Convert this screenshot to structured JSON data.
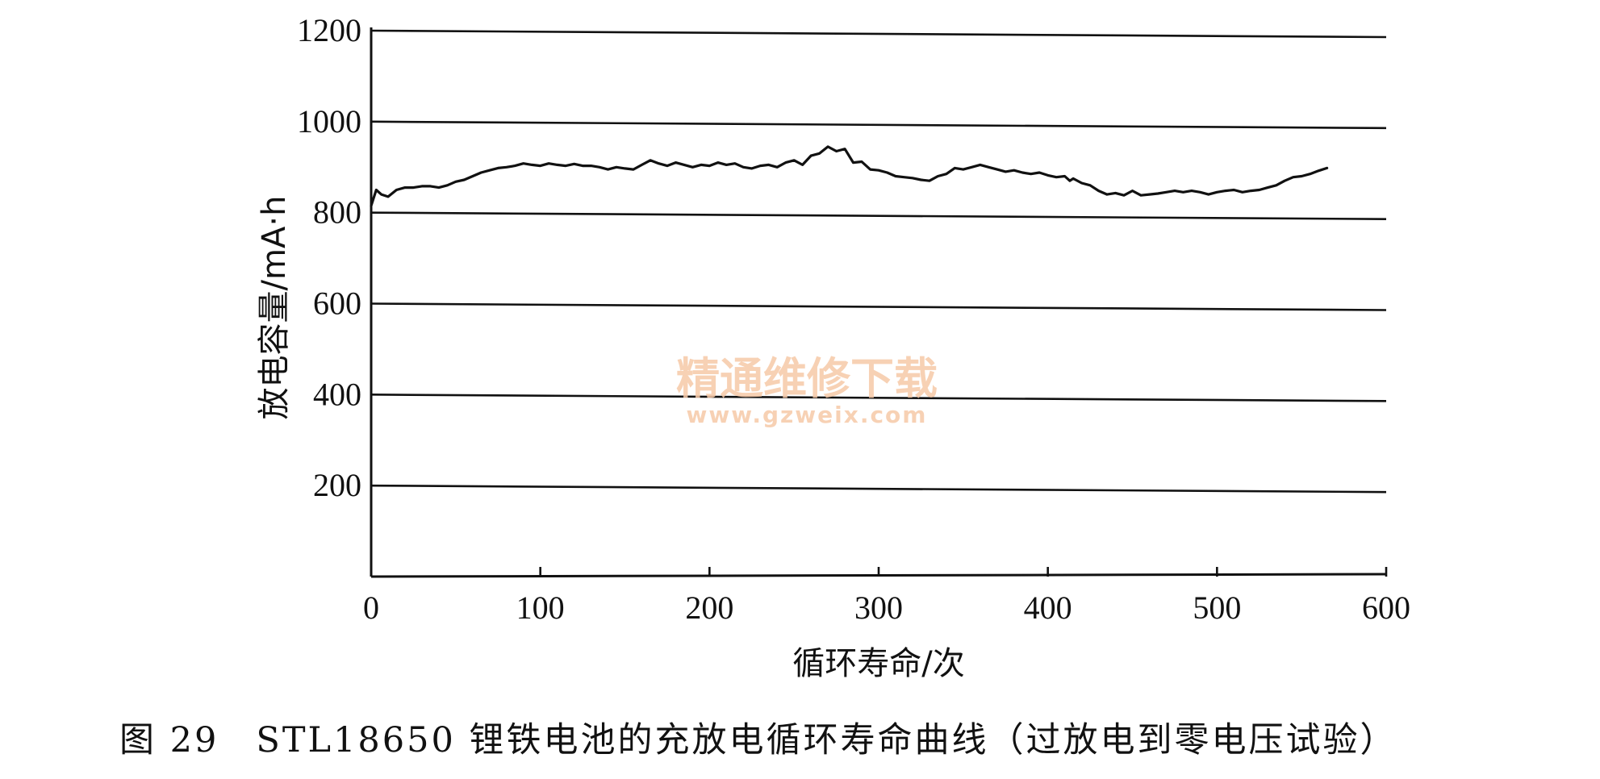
{
  "chart_data": {
    "type": "line",
    "xlabel": "循环寿命/次",
    "ylabel": "放电容量/mA·h",
    "xlim": [
      0,
      600
    ],
    "ylim": [
      0,
      1200
    ],
    "x_ticks": [
      "0",
      "100",
      "200",
      "300",
      "400",
      "500",
      "600"
    ],
    "y_ticks": [
      "200",
      "400",
      "600",
      "800",
      "1000",
      "1200"
    ],
    "grid": "horizontal",
    "line_color": "#111111",
    "series": [
      {
        "x": [
          0,
          3,
          6,
          10,
          15,
          20,
          25,
          30,
          35,
          40,
          45,
          50,
          55,
          60,
          65,
          70,
          75,
          80,
          85,
          90,
          95,
          100,
          105,
          110,
          115,
          120,
          125,
          130,
          135,
          140,
          145,
          150,
          155,
          160,
          165,
          170,
          175,
          180,
          185,
          190,
          195,
          200,
          205,
          210,
          215,
          220,
          225,
          230,
          235,
          240,
          245,
          250,
          255,
          260,
          265,
          270,
          275,
          280,
          285,
          290,
          295,
          300,
          305,
          310,
          315,
          320,
          325,
          330,
          335,
          340,
          345,
          350,
          355,
          360,
          365,
          370,
          375,
          380,
          385,
          390,
          395,
          400,
          405,
          410,
          413,
          415,
          420,
          425,
          430,
          435,
          440,
          445,
          450,
          455,
          460,
          465,
          470,
          475,
          480,
          485,
          490,
          495,
          500,
          505,
          510,
          515,
          520,
          525,
          530,
          535,
          540,
          545,
          550,
          555,
          560,
          565
        ],
        "y": [
          815,
          850,
          840,
          835,
          850,
          855,
          855,
          858,
          858,
          855,
          860,
          868,
          872,
          880,
          888,
          893,
          898,
          900,
          903,
          908,
          905,
          903,
          908,
          905,
          903,
          907,
          903,
          903,
          900,
          895,
          900,
          897,
          895,
          905,
          915,
          908,
          903,
          910,
          905,
          900,
          905,
          903,
          910,
          905,
          908,
          900,
          897,
          903,
          905,
          900,
          910,
          915,
          905,
          925,
          930,
          945,
          935,
          940,
          910,
          912,
          895,
          893,
          888,
          880,
          878,
          876,
          872,
          870,
          880,
          885,
          898,
          895,
          900,
          905,
          900,
          895,
          890,
          893,
          888,
          885,
          888,
          882,
          878,
          880,
          870,
          875,
          865,
          860,
          848,
          840,
          843,
          838,
          848,
          838,
          840,
          842,
          845,
          848,
          845,
          848,
          845,
          840,
          845,
          848,
          850,
          845,
          848,
          850,
          855,
          860,
          870,
          878,
          880,
          885,
          892,
          898
        ]
      }
    ]
  },
  "watermark": {
    "line1": "精通维修下载",
    "line2": "www.gzweix.com"
  },
  "caption": "图 29　STL18650 锂铁电池的充放电循环寿命曲线（过放电到零电压试验）"
}
